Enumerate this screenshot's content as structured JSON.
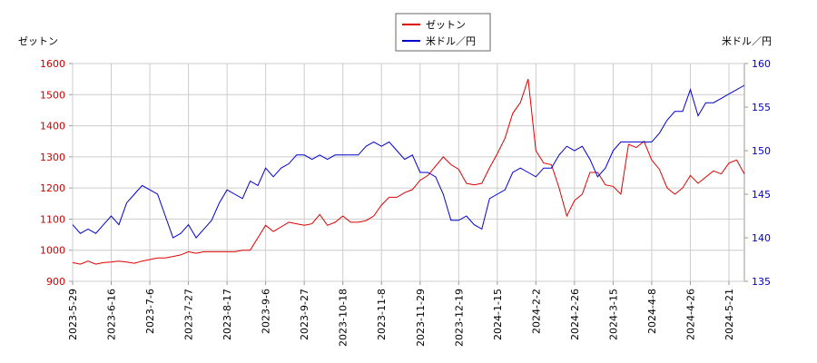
{
  "chart_data": {
    "type": "line",
    "y_label": "ゼットン",
    "y2_label": "米ドル／円",
    "categories": [
      "2023-5-29",
      null,
      null,
      null,
      null,
      "2023-6-16",
      null,
      null,
      null,
      null,
      "2023-7-6",
      null,
      null,
      null,
      null,
      "2023-7-27",
      null,
      null,
      null,
      null,
      "2023-8-17",
      null,
      null,
      null,
      null,
      "2023-9-6",
      null,
      null,
      null,
      null,
      "2023-9-27",
      null,
      null,
      null,
      null,
      "2023-10-18",
      null,
      null,
      null,
      null,
      "2023-11-8",
      null,
      null,
      null,
      null,
      "2023-11-29",
      null,
      null,
      null,
      null,
      "2023-12-19",
      null,
      null,
      null,
      null,
      "2024-1-15",
      null,
      null,
      null,
      null,
      "2024-2-2",
      null,
      null,
      null,
      null,
      "2024-2-26",
      null,
      null,
      null,
      null,
      "2024-3-15",
      null,
      null,
      null,
      null,
      "2024-4-8",
      null,
      null,
      null,
      null,
      "2024-4-26",
      null,
      null,
      null,
      null,
      "2024-5-21",
      null,
      null
    ],
    "series": [
      {
        "name": "ゼットン",
        "color": "#dd0000",
        "axis": "y",
        "values": [
          960,
          955,
          965,
          955,
          960,
          962,
          965,
          962,
          958,
          965,
          970,
          975,
          975,
          980,
          985,
          995,
          990,
          995,
          995,
          995,
          995,
          995,
          1000,
          1000,
          1040,
          1080,
          1060,
          1075,
          1090,
          1085,
          1080,
          1085,
          1115,
          1080,
          1090,
          1110,
          1090,
          1090,
          1095,
          1110,
          1145,
          1170,
          1170,
          1185,
          1195,
          1225,
          1240,
          1270,
          1300,
          1275,
          1260,
          1215,
          1210,
          1215,
          1265,
          1310,
          1360,
          1440,
          1475,
          1550,
          1320,
          1280,
          1275,
          1200,
          1110,
          1160,
          1180,
          1250,
          1250,
          1210,
          1205,
          1180,
          1340,
          1330,
          1350,
          1290,
          1260,
          1200,
          1180,
          1200,
          1240,
          1215,
          1235,
          1255,
          1245,
          1280,
          1290,
          1245
        ]
      },
      {
        "name": "米ドル／円",
        "color": "#0000cc",
        "axis": "y2",
        "values": [
          141.5,
          140.5,
          141,
          140.5,
          141.5,
          142.5,
          141.5,
          144,
          145,
          146,
          145.5,
          145,
          142.5,
          140,
          140.5,
          141.5,
          140,
          141,
          142,
          144,
          145.5,
          145,
          144.5,
          146.5,
          146,
          148,
          147,
          148,
          148.5,
          149.5,
          149.5,
          149,
          149.5,
          149,
          149.5,
          149.5,
          149.5,
          149.5,
          150.5,
          151,
          150.5,
          151,
          150,
          149,
          149.5,
          147.5,
          147.5,
          147,
          145,
          142,
          142,
          142.5,
          141.5,
          141,
          144.5,
          145,
          145.5,
          147.5,
          148,
          147.5,
          147,
          148,
          148,
          149.5,
          150.5,
          150,
          150.5,
          149,
          147,
          148,
          150,
          151,
          151,
          151,
          151,
          151,
          152,
          153.5,
          154.5,
          154.5,
          157,
          154,
          155.5,
          155.5,
          156,
          156.5,
          157,
          157.5
        ]
      }
    ],
    "ylim": [
      900,
      1600
    ],
    "yticks": [
      900,
      1000,
      1100,
      1200,
      1300,
      1400,
      1500,
      1600
    ],
    "y2lim": [
      135,
      160
    ],
    "y2ticks": [
      135,
      140,
      145,
      150,
      155,
      160
    ],
    "grid": true,
    "legend": "top"
  }
}
